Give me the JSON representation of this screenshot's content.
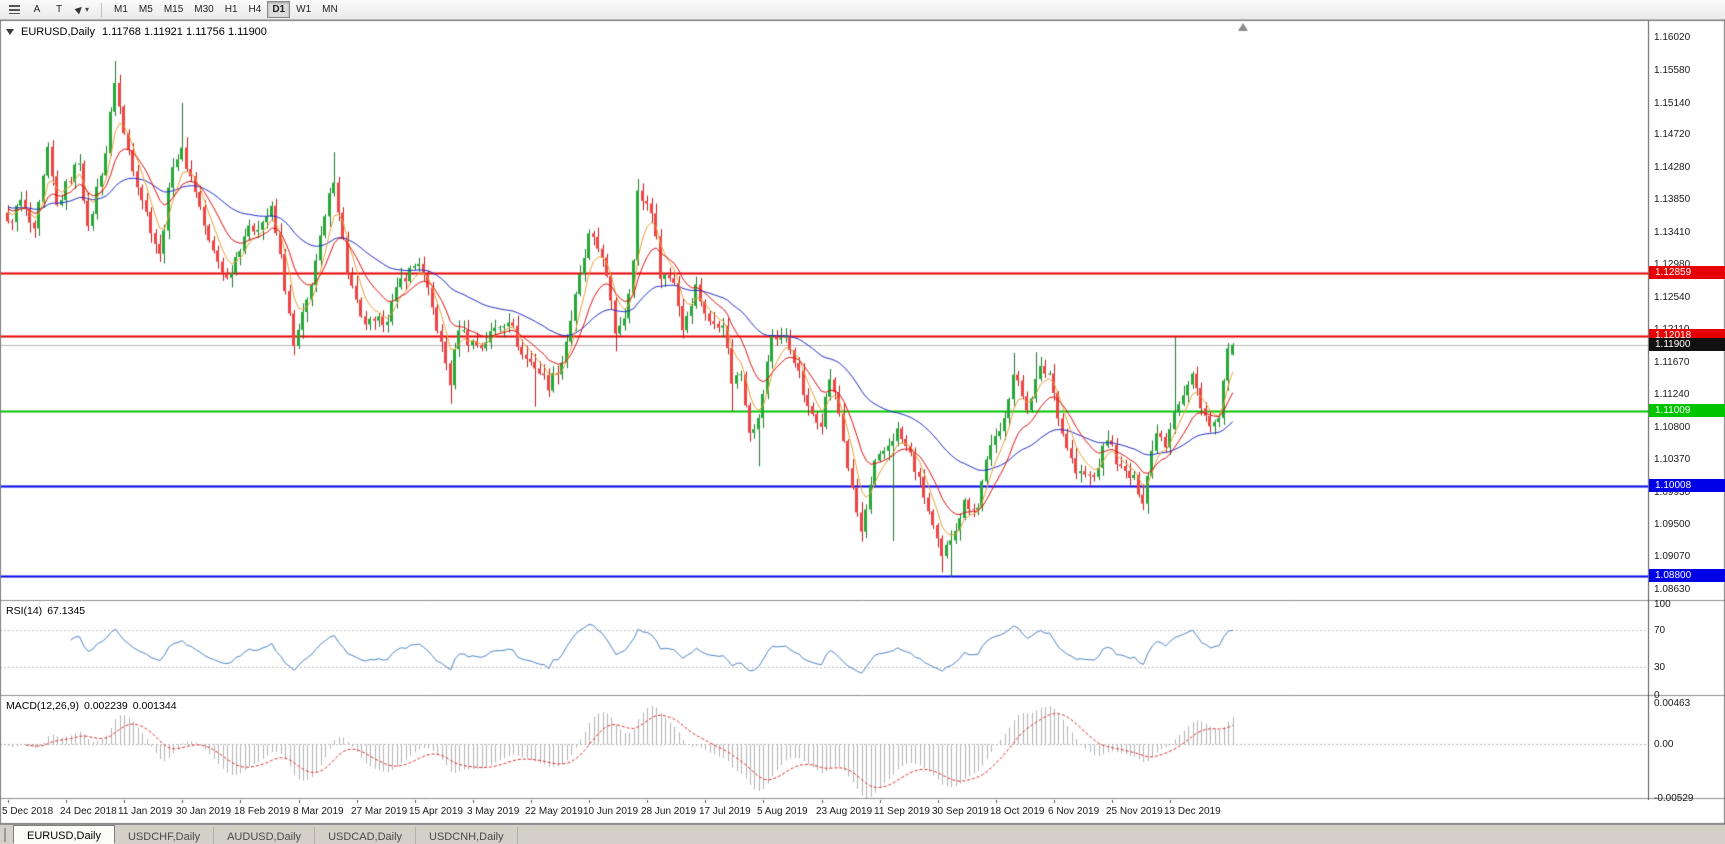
{
  "toolbar": {
    "a_label": "A",
    "t_label": "T",
    "dropdown_glyph": "▾",
    "timeframes": [
      "M1",
      "M5",
      "M15",
      "M30",
      "H1",
      "H4",
      "D1",
      "W1",
      "MN"
    ],
    "active_timeframe": "D1"
  },
  "chart": {
    "symbol_period": "EURUSD,Daily",
    "ohlc_text": "1.11768 1.11921 1.11756 1.11900"
  },
  "tabs": [
    {
      "label": "EURUSD,Daily",
      "active": true
    },
    {
      "label": "USDCHF,Daily",
      "active": false
    },
    {
      "label": "AUDUSD,Daily",
      "active": false
    },
    {
      "label": "USDCAD,Daily",
      "active": false
    },
    {
      "label": "USDCNH,Daily",
      "active": false
    }
  ],
  "chart_data": {
    "type": "candlestick",
    "symbol": "EURUSD",
    "period": "Daily",
    "current_bar": {
      "open": 1.11768,
      "high": 1.11921,
      "low": 1.11756,
      "close": 1.119
    },
    "y_axis": {
      "max": 1.1625,
      "min": 1.0848,
      "labels": [
        "1.16020",
        "1.15580",
        "1.15140",
        "1.14720",
        "1.14280",
        "1.13850",
        "1.13410",
        "1.12980",
        "1.12540",
        "1.12110",
        "1.11670",
        "1.11240",
        "1.10800",
        "1.10370",
        "1.09930",
        "1.09500",
        "1.09070",
        "1.08630"
      ]
    },
    "x_axis": {
      "candles_count": 275,
      "label_every": 13,
      "labels": [
        "5 Dec 2018",
        "24 Dec 2018",
        "11 Jan 2019",
        "30 Jan 2019",
        "18 Feb 2019",
        "8 Mar 2019",
        "27 Mar 2019",
        "15 Apr 2019",
        "3 May 2019",
        "22 May 2019",
        "10 Jun 2019",
        "28 Jun 2019",
        "17 Jul 2019",
        "5 Aug 2019",
        "23 Aug 2019",
        "11 Sep 2019",
        "30 Sep 2019",
        "18 Oct 2019",
        "6 Nov 2019",
        "25 Nov 2019",
        "13 Dec 2019"
      ]
    },
    "price_anchors": [
      [
        0,
        1.135
      ],
      [
        3,
        1.1382
      ],
      [
        6,
        1.1338
      ],
      [
        9,
        1.1448
      ],
      [
        11,
        1.1375
      ],
      [
        13,
        1.1402
      ],
      [
        16,
        1.1438
      ],
      [
        18,
        1.1342
      ],
      [
        20,
        1.1398
      ],
      [
        22,
        1.1448
      ],
      [
        24,
        1.1545
      ],
      [
        26,
        1.1472
      ],
      [
        29,
        1.1408
      ],
      [
        31,
        1.1366
      ],
      [
        34,
        1.1308
      ],
      [
        37,
        1.1435
      ],
      [
        39,
        1.1448
      ],
      [
        42,
        1.1398
      ],
      [
        45,
        1.1326
      ],
      [
        49,
        1.1278
      ],
      [
        53,
        1.1338
      ],
      [
        57,
        1.1355
      ],
      [
        59,
        1.137
      ],
      [
        61,
        1.1308
      ],
      [
        64,
        1.1186
      ],
      [
        67,
        1.1248
      ],
      [
        70,
        1.133
      ],
      [
        73,
        1.1415
      ],
      [
        76,
        1.1288
      ],
      [
        79,
        1.1222
      ],
      [
        82,
        1.1216
      ],
      [
        85,
        1.1228
      ],
      [
        88,
        1.1276
      ],
      [
        92,
        1.1302
      ],
      [
        95,
        1.1238
      ],
      [
        99,
        1.114
      ],
      [
        101,
        1.1215
      ],
      [
        103,
        1.1196
      ],
      [
        106,
        1.1188
      ],
      [
        109,
        1.1212
      ],
      [
        112,
        1.1226
      ],
      [
        115,
        1.1176
      ],
      [
        118,
        1.1162
      ],
      [
        121,
        1.1136
      ],
      [
        124,
        1.1168
      ],
      [
        127,
        1.1252
      ],
      [
        130,
        1.1334
      ],
      [
        133,
        1.1312
      ],
      [
        136,
        1.1208
      ],
      [
        138,
        1.123
      ],
      [
        140,
        1.1302
      ],
      [
        141,
        1.1392
      ],
      [
        144,
        1.1372
      ],
      [
        146,
        1.1286
      ],
      [
        149,
        1.1276
      ],
      [
        151,
        1.1212
      ],
      [
        154,
        1.1268
      ],
      [
        157,
        1.1218
      ],
      [
        160,
        1.1222
      ],
      [
        162,
        1.1142
      ],
      [
        164,
        1.1152
      ],
      [
        166,
        1.1078
      ],
      [
        168,
        1.1088
      ],
      [
        171,
        1.1202
      ],
      [
        174,
        1.1198
      ],
      [
        176,
        1.1172
      ],
      [
        179,
        1.1102
      ],
      [
        182,
        1.1088
      ],
      [
        184,
        1.1146
      ],
      [
        186,
        1.1098
      ],
      [
        189,
        1.0992
      ],
      [
        191,
        1.0938
      ],
      [
        194,
        1.1028
      ],
      [
        198,
        1.1066
      ],
      [
        199,
        1.1074
      ],
      [
        202,
        1.1042
      ],
      [
        205,
        1.0988
      ],
      [
        209,
        1.0902
      ],
      [
        211,
        1.0932
      ],
      [
        214,
        1.0978
      ],
      [
        217,
        1.0972
      ],
      [
        219,
        1.104
      ],
      [
        222,
        1.1072
      ],
      [
        225,
        1.115
      ],
      [
        228,
        1.1108
      ],
      [
        231,
        1.1156
      ],
      [
        233,
        1.1152
      ],
      [
        236,
        1.1072
      ],
      [
        239,
        1.1018
      ],
      [
        243,
        1.1012
      ],
      [
        246,
        1.1066
      ],
      [
        249,
        1.1022
      ],
      [
        252,
        1.1008
      ],
      [
        254,
        1.0984
      ],
      [
        257,
        1.1078
      ],
      [
        259,
        1.1058
      ],
      [
        261,
        1.1105
      ],
      [
        263,
        1.1122
      ],
      [
        265,
        1.1148
      ],
      [
        267,
        1.1112
      ],
      [
        269,
        1.1078
      ],
      [
        271,
        1.109
      ],
      [
        272,
        1.1135
      ],
      [
        273,
        1.1178
      ],
      [
        274,
        1.119
      ]
    ],
    "synth": {
      "noise_amp": 0.0008,
      "wick": 0.0014,
      "ma_seed": 1.1375,
      "overrides": {
        "24": {
          "h": 1.157
        },
        "39": {
          "h": 1.1514
        },
        "64": {
          "l": 1.1176
        },
        "73": {
          "h": 1.1448
        },
        "99": {
          "l": 1.1111
        },
        "118": {
          "l": 1.1107
        },
        "136": {
          "l": 1.1181
        },
        "141": {
          "h": 1.1412
        },
        "162": {
          "l": 1.1101
        },
        "166": {
          "l": 1.106
        },
        "168": {
          "l": 1.1027
        },
        "191": {
          "l": 1.0926
        },
        "198": {
          "l": 1.0927
        },
        "209": {
          "l": 1.0885
        },
        "211": {
          "l": 1.0879
        },
        "225": {
          "h": 1.1179
        },
        "230": {
          "h": 1.118
        },
        "261": {
          "h": 1.12
        },
        "274": {
          "o": 1.11768,
          "h": 1.11921,
          "l": 1.11756,
          "c": 1.119
        }
      }
    },
    "candle_colors": {
      "up_fill": "#27a737",
      "up_border": "#1b7e2a",
      "down_fill": "#ef4444",
      "down_border": "#c21d1d"
    },
    "moving_averages": [
      {
        "name": "fast-ma",
        "period": 5,
        "color": "#e9a23b"
      },
      {
        "name": "mid-ma",
        "period": 12,
        "color": "#e01414"
      },
      {
        "name": "slow-ma",
        "period": 40,
        "color": "#2430c8"
      }
    ],
    "horizontal_lines": [
      {
        "price": 1.12859,
        "label": "1.12859",
        "color": "#e60000",
        "width": 2
      },
      {
        "price": 1.12018,
        "label": "1.12018",
        "color": "#e60000",
        "width": 2
      },
      {
        "price": 1.119,
        "label": "1.11900",
        "color": "#b8b8b8",
        "width": 1,
        "tag_bg": "#111111",
        "role": "current-price"
      },
      {
        "price": 1.11009,
        "label": "1.11009",
        "color": "#00c400",
        "width": 2
      },
      {
        "price": 1.10008,
        "label": "1.10008",
        "color": "#0000e6",
        "width": 2
      },
      {
        "price": 1.088,
        "label": "1.08800",
        "color": "#0000e6",
        "width": 2
      }
    ],
    "rsi": {
      "label": "RSI(14)",
      "value": "67.1345",
      "period": 14,
      "color": "#4f86c6",
      "levels": [
        70,
        30
      ],
      "scale": [
        "100",
        "70",
        "30",
        "0"
      ]
    },
    "macd": {
      "label": "MACD(12,26,9)",
      "value_main": "0.002239",
      "value_signal": "0.001344",
      "fast": 12,
      "slow": 26,
      "signal": 9,
      "scale_labels": [
        "0.00463",
        "0.00",
        "-0.00529"
      ],
      "scale_max": 0.00463,
      "scale_min": -0.00529,
      "hist_color": "#b4b4b4",
      "signal_color": "#e03030"
    }
  }
}
